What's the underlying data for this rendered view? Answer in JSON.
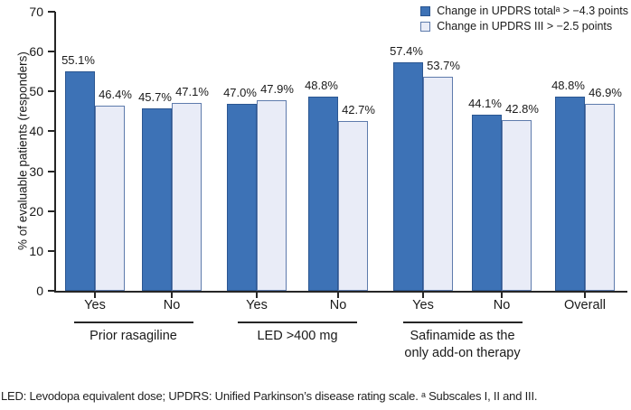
{
  "figure": {
    "footnote": "LED: Levodopa equivalent dose; UPDRS: Unified Parkinson’s disease rating scale. ᵃ Subscales I, II and III."
  },
  "colors": {
    "bar_dark": "#3D72B6",
    "bar_dark_border": "#2B5691",
    "bar_light": "#E9ECF7",
    "bar_light_border": "#5E7BAC",
    "axis": "#262626",
    "text": "#1A1A1A"
  },
  "chart_data": {
    "type": "bar",
    "title": "",
    "xlabel": "",
    "ylabel": "% of evaluable patients (responders)",
    "ylim": [
      0,
      70
    ],
    "yticks": [
      0,
      10,
      20,
      30,
      40,
      50,
      60,
      70
    ],
    "grid": false,
    "legend_position": "top-right",
    "value_labels": "one decimal + percent sign above each bar",
    "categories": [
      "Yes",
      "No",
      "Yes",
      "No",
      "Yes",
      "No",
      "Overall"
    ],
    "series": [
      {
        "name": "Change in UPDRS totalᵃ > −4.3 points",
        "values": [
          55.1,
          45.7,
          47.0,
          48.8,
          57.4,
          44.1,
          48.8
        ]
      },
      {
        "name": "Change in UPDRS III > −2.5 points",
        "values": [
          46.4,
          47.1,
          47.9,
          42.7,
          53.7,
          42.8,
          46.9
        ]
      }
    ],
    "groups": [
      {
        "label": "Prior rasagiline",
        "pairs": [
          0,
          1
        ]
      },
      {
        "label": "LED >400 mg",
        "pairs": [
          2,
          3
        ]
      },
      {
        "label": "Safinamide as the\nonly add-on therapy",
        "pairs": [
          4,
          5
        ]
      }
    ]
  }
}
